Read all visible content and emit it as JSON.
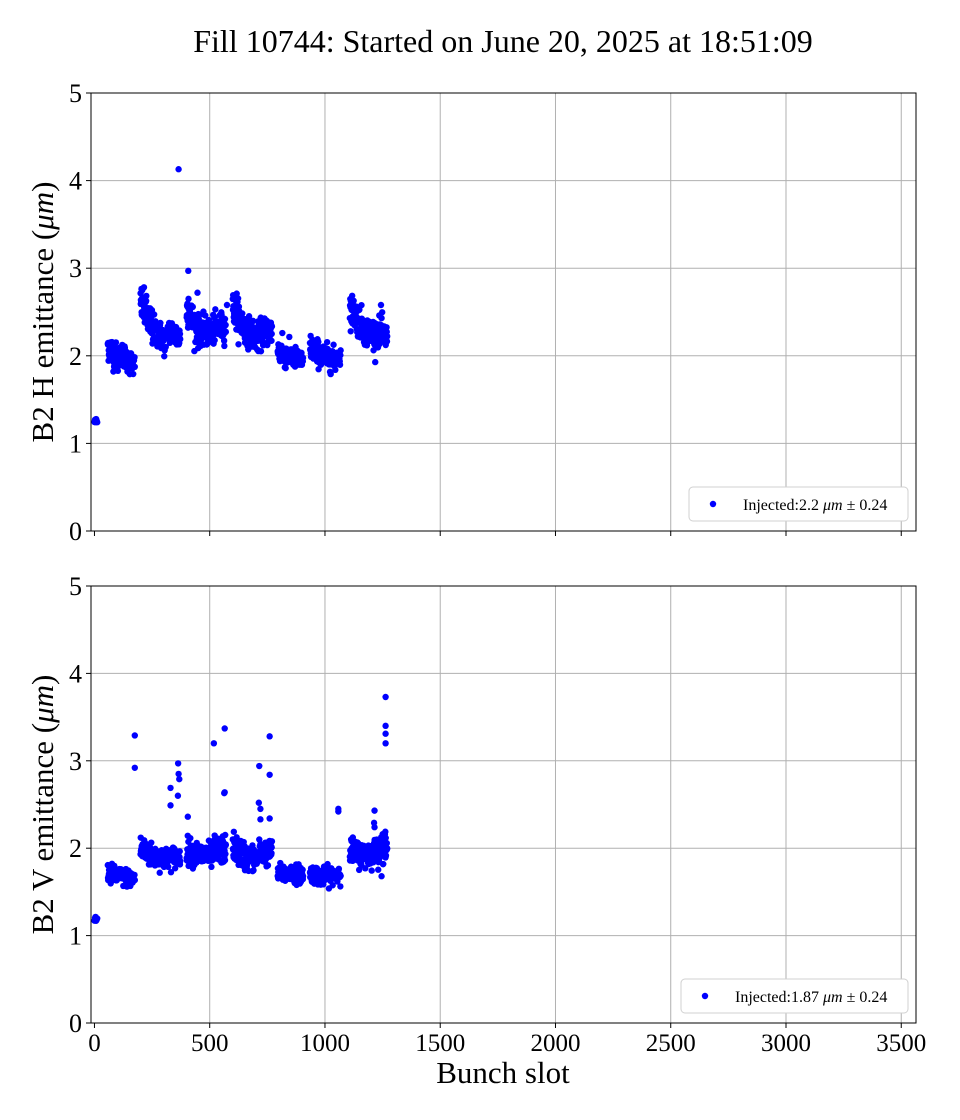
{
  "figure": {
    "title": "Fill 10744: Started on June 20, 2025 at 18:51:09",
    "xlabel": "Bunch slot"
  },
  "colors": {
    "marker": "#0000ff",
    "grid": "#b0b0b0",
    "axis": "#000000"
  },
  "chart_data": [
    {
      "type": "scatter",
      "ylabel_main": "B2 H emittance (",
      "ylabel_unit": "μm",
      "ylabel_close": ")",
      "xlim": [
        -15,
        3564
      ],
      "ylim": [
        0,
        5
      ],
      "xticks": [
        0,
        500,
        1000,
        1500,
        2000,
        2500,
        3000,
        3500
      ],
      "xtick_labels_shown": false,
      "yticks": [
        0,
        1,
        2,
        3,
        4,
        5
      ],
      "grid": true,
      "legend": {
        "placement": "lower-right",
        "prefix": "Injected:",
        "value": "2.2",
        "unit": "μm",
        "pm": "±",
        "sigma": "0.24"
      },
      "series": [
        {
          "marker": "circle",
          "outliers": [
            [
              365,
              4.13
            ],
            [
              407,
              2.97
            ],
            [
              408,
              2.65
            ],
            [
              447,
              2.72
            ],
            [
              575,
              2.58
            ],
            [
              617,
              2.71
            ],
            [
              815,
              2.26
            ],
            [
              1243,
              2.58
            ]
          ],
          "trains": [
            {
              "x": [
                0,
                12
              ],
              "y": [
                1.25,
                1.25
              ],
              "sd": 0.02,
              "n": 6
            },
            {
              "x": [
                58,
                104
              ],
              "y": [
                2.12,
                1.95
              ],
              "sd": 0.08,
              "n": 60
            },
            {
              "x": [
                108,
                175
              ],
              "y": [
                2.05,
                1.88
              ],
              "sd": 0.07,
              "n": 60
            },
            {
              "x": [
                200,
                254
              ],
              "y": [
                2.62,
                2.3
              ],
              "sd": 0.1,
              "n": 70
            },
            {
              "x": [
                258,
                313
              ],
              "y": [
                2.3,
                2.15
              ],
              "sd": 0.08,
              "n": 60
            },
            {
              "x": [
                318,
                372
              ],
              "y": [
                2.3,
                2.2
              ],
              "sd": 0.08,
              "n": 55
            },
            {
              "x": [
                400,
                455
              ],
              "y": [
                2.55,
                2.25
              ],
              "sd": 0.09,
              "n": 65
            },
            {
              "x": [
                458,
                512
              ],
              "y": [
                2.3,
                2.25
              ],
              "sd": 0.08,
              "n": 60
            },
            {
              "x": [
                515,
                570
              ],
              "y": [
                2.3,
                2.35
              ],
              "sd": 0.08,
              "n": 60
            },
            {
              "x": [
                600,
                655
              ],
              "y": [
                2.55,
                2.3
              ],
              "sd": 0.09,
              "n": 65
            },
            {
              "x": [
                658,
                712
              ],
              "y": [
                2.3,
                2.2
              ],
              "sd": 0.08,
              "n": 60
            },
            {
              "x": [
                715,
                770
              ],
              "y": [
                2.25,
                2.3
              ],
              "sd": 0.08,
              "n": 60
            },
            {
              "x": [
                795,
                850
              ],
              "y": [
                2.05,
                1.98
              ],
              "sd": 0.07,
              "n": 60
            },
            {
              "x": [
                853,
                905
              ],
              "y": [
                2.0,
                1.93
              ],
              "sd": 0.06,
              "n": 55
            },
            {
              "x": [
                935,
                990
              ],
              "y": [
                2.1,
                2.0
              ],
              "sd": 0.07,
              "n": 60
            },
            {
              "x": [
                993,
                1045
              ],
              "y": [
                2.0,
                1.95
              ],
              "sd": 0.07,
              "n": 55
            },
            {
              "x": [
                1050,
                1068
              ],
              "y": [
                2.0,
                2.0
              ],
              "sd": 0.06,
              "n": 15
            },
            {
              "x": [
                1108,
                1162
              ],
              "y": [
                2.55,
                2.35
              ],
              "sd": 0.09,
              "n": 60
            },
            {
              "x": [
                1165,
                1218
              ],
              "y": [
                2.3,
                2.25
              ],
              "sd": 0.08,
              "n": 60
            },
            {
              "x": [
                1221,
                1270
              ],
              "y": [
                2.3,
                2.2
              ],
              "sd": 0.08,
              "n": 55
            }
          ]
        }
      ]
    },
    {
      "type": "scatter",
      "ylabel_main": "B2 V emittance (",
      "ylabel_unit": "μm",
      "ylabel_close": ")",
      "xlim": [
        -15,
        3564
      ],
      "ylim": [
        0,
        5
      ],
      "xticks": [
        0,
        500,
        1000,
        1500,
        2000,
        2500,
        3000,
        3500
      ],
      "xtick_labels_shown": true,
      "yticks": [
        0,
        1,
        2,
        3,
        4,
        5
      ],
      "grid": true,
      "legend": {
        "placement": "lower-right",
        "prefix": "Injected:",
        "value": "1.87",
        "unit": "μm",
        "pm": "±",
        "sigma": "0.24"
      },
      "series": [
        {
          "marker": "circle",
          "outliers": [
            [
              175,
              3.29
            ],
            [
              175,
              2.92
            ],
            [
              363,
              2.97
            ],
            [
              365,
              2.85
            ],
            [
              368,
              2.79
            ],
            [
              362,
              2.6
            ],
            [
              330,
              2.69
            ],
            [
              330,
              2.49
            ],
            [
              405,
              2.36
            ],
            [
              518,
              3.2
            ],
            [
              565,
              3.37
            ],
            [
              565,
              2.64
            ],
            [
              563,
              2.63
            ],
            [
              715,
              2.94
            ],
            [
              760,
              3.28
            ],
            [
              760,
              2.84
            ],
            [
              713,
              2.52
            ],
            [
              720,
              2.45
            ],
            [
              720,
              2.33
            ],
            [
              760,
              2.34
            ],
            [
              1058,
              2.45
            ],
            [
              1058,
              2.42
            ],
            [
              1215,
              2.43
            ],
            [
              1213,
              2.29
            ],
            [
              1215,
              2.24
            ],
            [
              1263,
              3.73
            ],
            [
              1263,
              3.4
            ],
            [
              1263,
              3.31
            ],
            [
              1263,
              3.2
            ],
            [
              1260,
              2.16
            ],
            [
              1250,
              2.16
            ]
          ],
          "trains": [
            {
              "x": [
                0,
                12
              ],
              "y": [
                1.18,
                1.2
              ],
              "sd": 0.03,
              "n": 6
            },
            {
              "x": [
                58,
                104
              ],
              "y": [
                1.72,
                1.68
              ],
              "sd": 0.05,
              "n": 60
            },
            {
              "x": [
                108,
                175
              ],
              "y": [
                1.68,
                1.65
              ],
              "sd": 0.05,
              "n": 60
            },
            {
              "x": [
                200,
                254
              ],
              "y": [
                2.0,
                1.9
              ],
              "sd": 0.07,
              "n": 65
            },
            {
              "x": [
                258,
                313
              ],
              "y": [
                1.9,
                1.88
              ],
              "sd": 0.06,
              "n": 60
            },
            {
              "x": [
                318,
                372
              ],
              "y": [
                1.9,
                1.9
              ],
              "sd": 0.06,
              "n": 55
            },
            {
              "x": [
                400,
                455
              ],
              "y": [
                1.98,
                1.92
              ],
              "sd": 0.07,
              "n": 60
            },
            {
              "x": [
                458,
                512
              ],
              "y": [
                1.93,
                1.92
              ],
              "sd": 0.07,
              "n": 60
            },
            {
              "x": [
                515,
                570
              ],
              "y": [
                1.95,
                2.0
              ],
              "sd": 0.08,
              "n": 60
            },
            {
              "x": [
                600,
                655
              ],
              "y": [
                2.02,
                1.9
              ],
              "sd": 0.08,
              "n": 60
            },
            {
              "x": [
                658,
                712
              ],
              "y": [
                1.9,
                1.88
              ],
              "sd": 0.07,
              "n": 60
            },
            {
              "x": [
                715,
                770
              ],
              "y": [
                1.95,
                1.95
              ],
              "sd": 0.07,
              "n": 55
            },
            {
              "x": [
                795,
                850
              ],
              "y": [
                1.72,
                1.7
              ],
              "sd": 0.05,
              "n": 60
            },
            {
              "x": [
                853,
                905
              ],
              "y": [
                1.72,
                1.7
              ],
              "sd": 0.05,
              "n": 55
            },
            {
              "x": [
                935,
                990
              ],
              "y": [
                1.72,
                1.66
              ],
              "sd": 0.05,
              "n": 60
            },
            {
              "x": [
                993,
                1045
              ],
              "y": [
                1.68,
                1.7
              ],
              "sd": 0.05,
              "n": 55
            },
            {
              "x": [
                1050,
                1068
              ],
              "y": [
                1.72,
                1.72
              ],
              "sd": 0.05,
              "n": 15
            },
            {
              "x": [
                1108,
                1162
              ],
              "y": [
                1.98,
                1.92
              ],
              "sd": 0.07,
              "n": 60
            },
            {
              "x": [
                1165,
                1218
              ],
              "y": [
                1.92,
                1.95
              ],
              "sd": 0.07,
              "n": 60
            },
            {
              "x": [
                1221,
                1270
              ],
              "y": [
                1.98,
                1.98
              ],
              "sd": 0.08,
              "n": 55
            }
          ]
        }
      ]
    }
  ]
}
